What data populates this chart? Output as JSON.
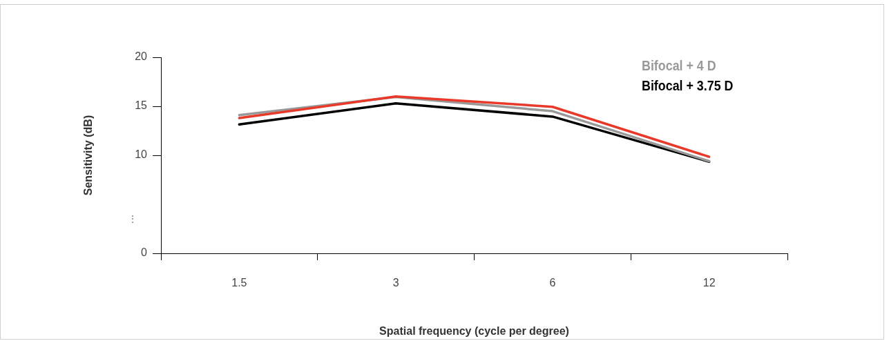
{
  "chart_data": {
    "type": "line",
    "xlabel": "Spatial frequency (cycle per degree)",
    "ylabel": "Sensitivity (dB)",
    "categories": [
      "1.5",
      "3",
      "6",
      "12"
    ],
    "ylim": [
      0,
      20
    ],
    "yticks": [
      0,
      10,
      15,
      20
    ],
    "annotations": [
      "⋮"
    ],
    "grid": false,
    "legend": "top right",
    "marker": "none",
    "line_style": "solid",
    "series": [
      {
        "color": "#e8392a",
        "values": [
          13.8,
          16.0,
          14.95,
          9.85
        ]
      },
      {
        "name": "Bifocal + 4 D",
        "color": "#999999",
        "values": [
          14.1,
          15.95,
          14.5,
          9.4
        ]
      },
      {
        "name": "Bifocal + 3.75 D",
        "color": "#000000",
        "values": [
          13.15,
          15.3,
          13.95,
          9.35
        ]
      }
    ]
  }
}
